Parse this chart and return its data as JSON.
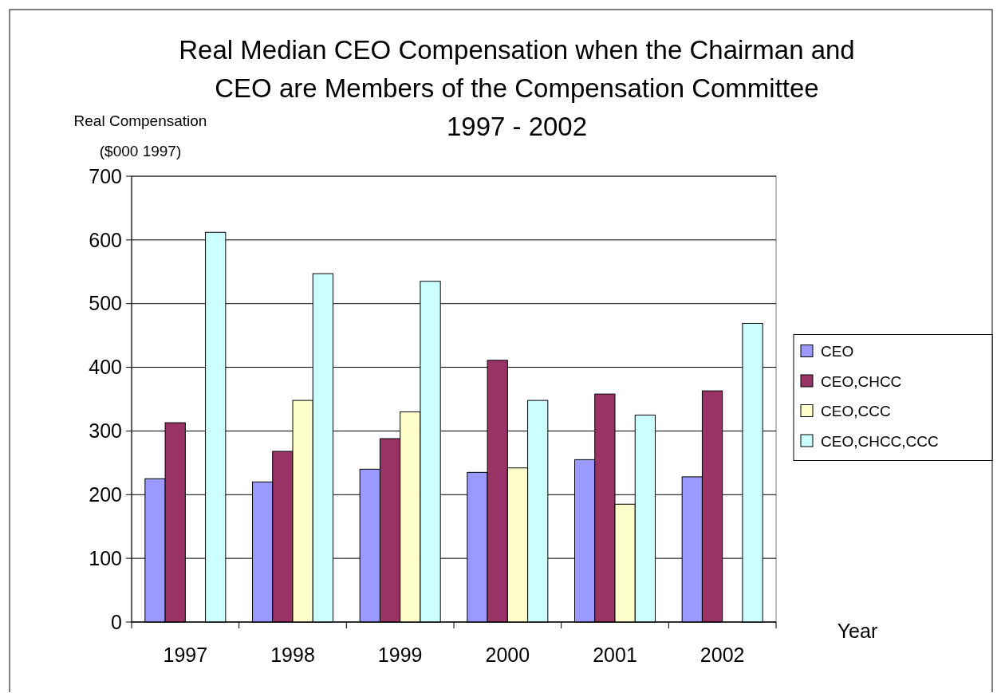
{
  "chart_data": {
    "type": "bar",
    "title": "Real Median CEO Compensation when the Chairman and\nCEO are Members of the Compensation Committee\n1997 - 2002",
    "ylabel": "Real Compensation\n($000 1997)",
    "xlabel": "Year",
    "categories": [
      "1997",
      "1998",
      "1999",
      "2000",
      "2001",
      "2002"
    ],
    "series": [
      {
        "name": "CEO",
        "color": "#9999ff",
        "values": [
          225,
          220,
          240,
          235,
          255,
          228
        ]
      },
      {
        "name": "CEO,CHCC",
        "color": "#993366",
        "values": [
          313,
          268,
          288,
          411,
          358,
          363
        ]
      },
      {
        "name": "CEO,CCC",
        "color": "#ffffcc",
        "values": [
          null,
          348,
          330,
          242,
          185,
          null
        ]
      },
      {
        "name": "CEO,CHCC,CCC",
        "color": "#ccffff",
        "values": [
          612,
          547,
          535,
          348,
          325,
          469
        ]
      }
    ],
    "ylim": [
      0,
      700
    ],
    "yticks": [
      0,
      100,
      200,
      300,
      400,
      500,
      600,
      700
    ],
    "grid": "y",
    "legend": "right"
  }
}
